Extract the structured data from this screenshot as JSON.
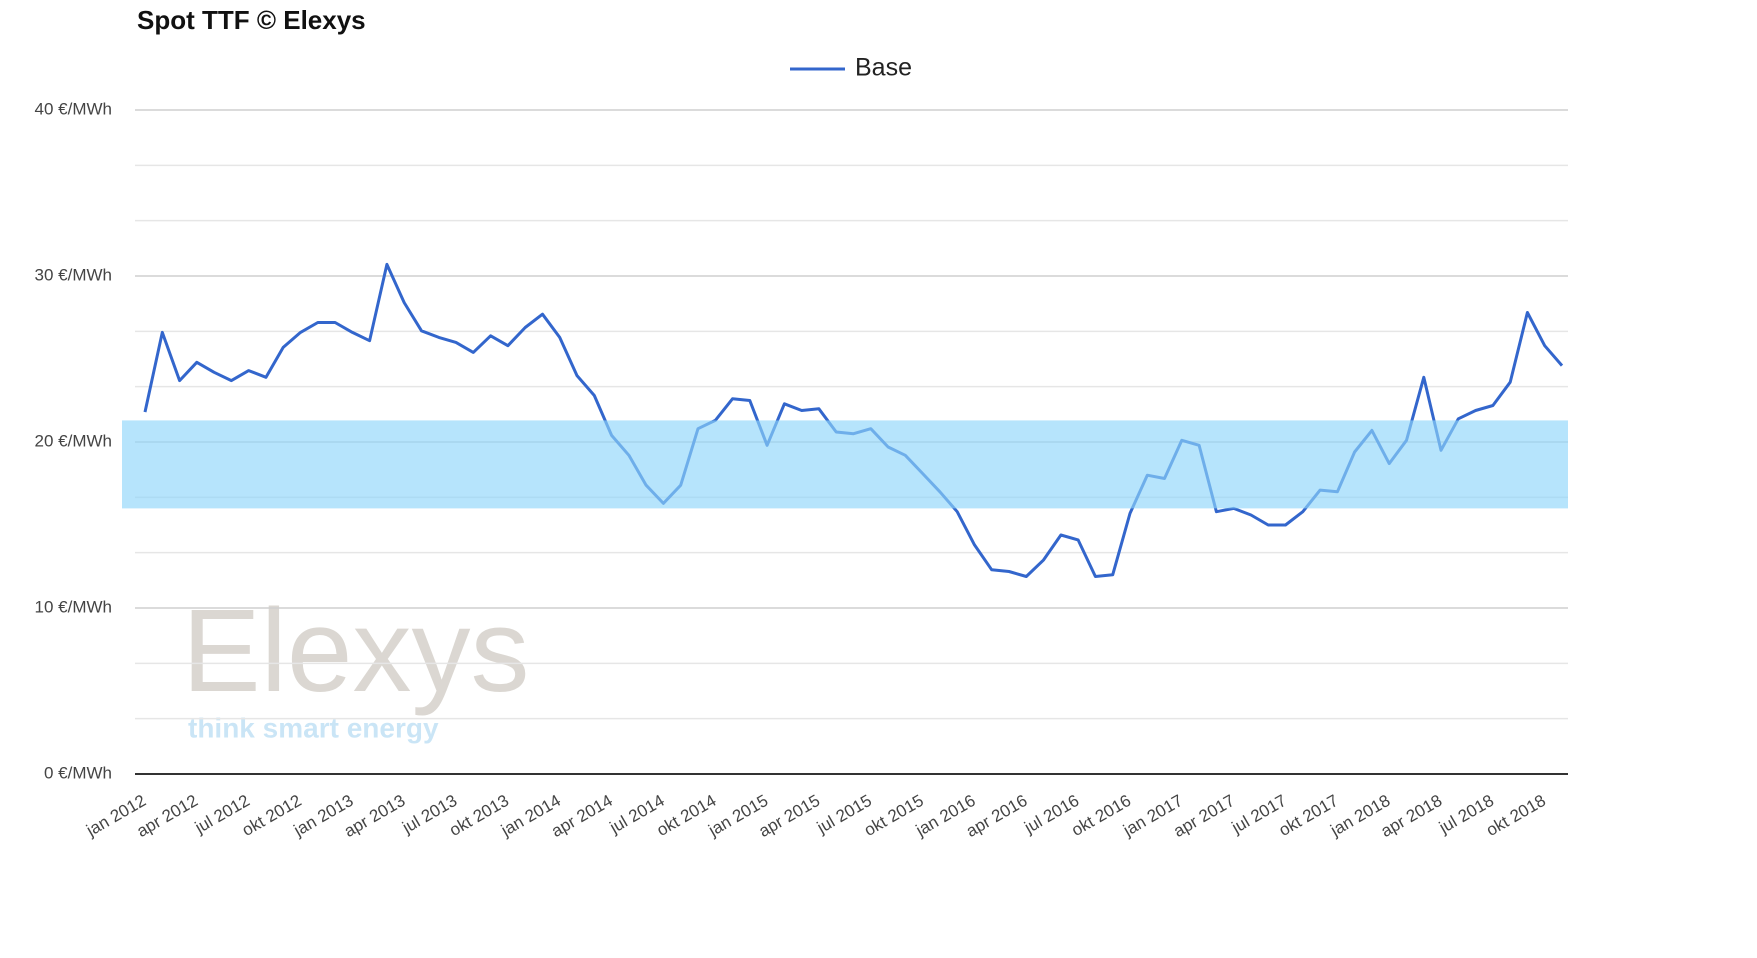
{
  "chart_data": {
    "type": "line",
    "title": "Spot TTF © Elexys",
    "watermark": {
      "brand": "Elexys",
      "tagline": "think smart energy"
    },
    "categories": [
      "jan 2012",
      null,
      null,
      "apr 2012",
      null,
      null,
      "jul 2012",
      null,
      null,
      "okt 2012",
      null,
      null,
      "jan 2013",
      null,
      null,
      "apr 2013",
      null,
      null,
      "jul 2013",
      null,
      null,
      "okt 2013",
      null,
      null,
      "jan 2014",
      null,
      null,
      "apr 2014",
      null,
      null,
      "jul 2014",
      null,
      null,
      "okt 2014",
      null,
      null,
      "jan 2015",
      null,
      null,
      "apr 2015",
      null,
      null,
      "jul 2015",
      null,
      null,
      "okt 2015",
      null,
      null,
      "jan 2016",
      null,
      null,
      "apr 2016",
      null,
      null,
      "jul 2016",
      null,
      null,
      "okt 2016",
      null,
      null,
      "jan 2017",
      null,
      null,
      "apr 2017",
      null,
      null,
      "jul 2017",
      null,
      null,
      "okt 2017",
      null,
      null,
      "jan 2018",
      null,
      null,
      "apr 2018",
      null,
      null,
      "jul 2018",
      null,
      null,
      "okt 2018",
      null
    ],
    "series": [
      {
        "name": "Base",
        "color": "#3366cc",
        "values": [
          21.8,
          26.6,
          23.7,
          24.8,
          24.2,
          23.7,
          24.3,
          23.9,
          25.7,
          26.6,
          27.2,
          27.2,
          26.6,
          26.1,
          30.7,
          28.4,
          26.7,
          26.3,
          26.0,
          25.4,
          26.4,
          25.8,
          26.9,
          27.7,
          26.3,
          24.0,
          22.8,
          20.4,
          19.2,
          17.4,
          16.3,
          17.4,
          20.8,
          21.3,
          22.6,
          22.5,
          19.8,
          22.3,
          21.9,
          22.0,
          20.6,
          20.5,
          20.8,
          19.7,
          19.2,
          18.1,
          17.0,
          15.8,
          13.8,
          12.3,
          12.2,
          11.9,
          12.9,
          14.4,
          14.1,
          11.9,
          12.0,
          15.7,
          18.0,
          17.8,
          20.1,
          19.8,
          15.8,
          16.0,
          15.6,
          15.0,
          15.0,
          15.8,
          17.1,
          17.0,
          19.4,
          20.7,
          18.7,
          20.1,
          23.9,
          19.5,
          21.4,
          21.9,
          22.2,
          23.6,
          27.8,
          25.8,
          24.6
        ]
      }
    ],
    "band": {
      "range": [
        16.0,
        21.3
      ],
      "color": "#8fd6fa"
    },
    "ylim": [
      0,
      40
    ],
    "yticks": [
      {
        "value": 0,
        "label": "0 €/MWh"
      },
      {
        "value": 10,
        "label": "10 €/MWh"
      },
      {
        "value": 20,
        "label": "20 €/MWh"
      },
      {
        "value": 30,
        "label": "30 €/MWh"
      },
      {
        "value": 40,
        "label": "40 €/MWh"
      }
    ],
    "minor_gridlines": 2,
    "grid": true,
    "legend": "top"
  }
}
